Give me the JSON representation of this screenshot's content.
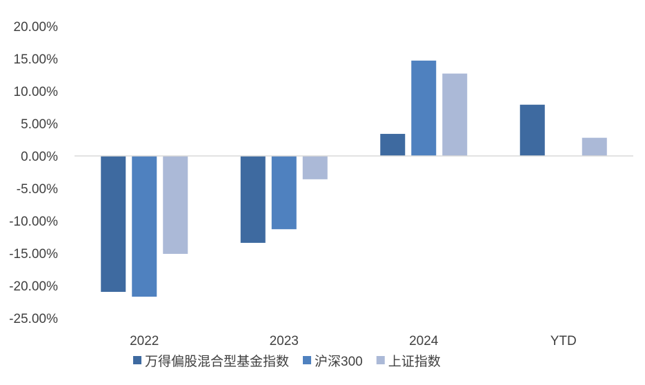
{
  "chart_data": {
    "type": "bar",
    "title": "",
    "xlabel": "",
    "ylabel": "",
    "categories": [
      "2022",
      "2023",
      "2024",
      "YTD"
    ],
    "series": [
      {
        "name": "万得偏股混合型基金指数",
        "color": "#3e6aa0",
        "values": [
          -20.96,
          -13.4,
          3.4,
          7.9
        ]
      },
      {
        "name": "沪深300",
        "color": "#4f81bf",
        "values": [
          -21.7,
          -11.3,
          14.7,
          null
        ]
      },
      {
        "name": "上证指数",
        "color": "#abb9d7",
        "values": [
          -15.1,
          -3.6,
          12.7,
          2.8
        ]
      }
    ],
    "ylim": [
      -25,
      20
    ],
    "yticks": [
      20,
      15,
      10,
      5,
      0,
      -5,
      -10,
      -15,
      -20,
      -25
    ],
    "ytick_labels": [
      "20.00%",
      "15.00%",
      "10.00%",
      "5.00%",
      "0.00%",
      "-5.00%",
      "-10.00%",
      "-15.00%",
      "-20.00%",
      "-25.00%"
    ],
    "grid": false,
    "legend": "bottom"
  }
}
